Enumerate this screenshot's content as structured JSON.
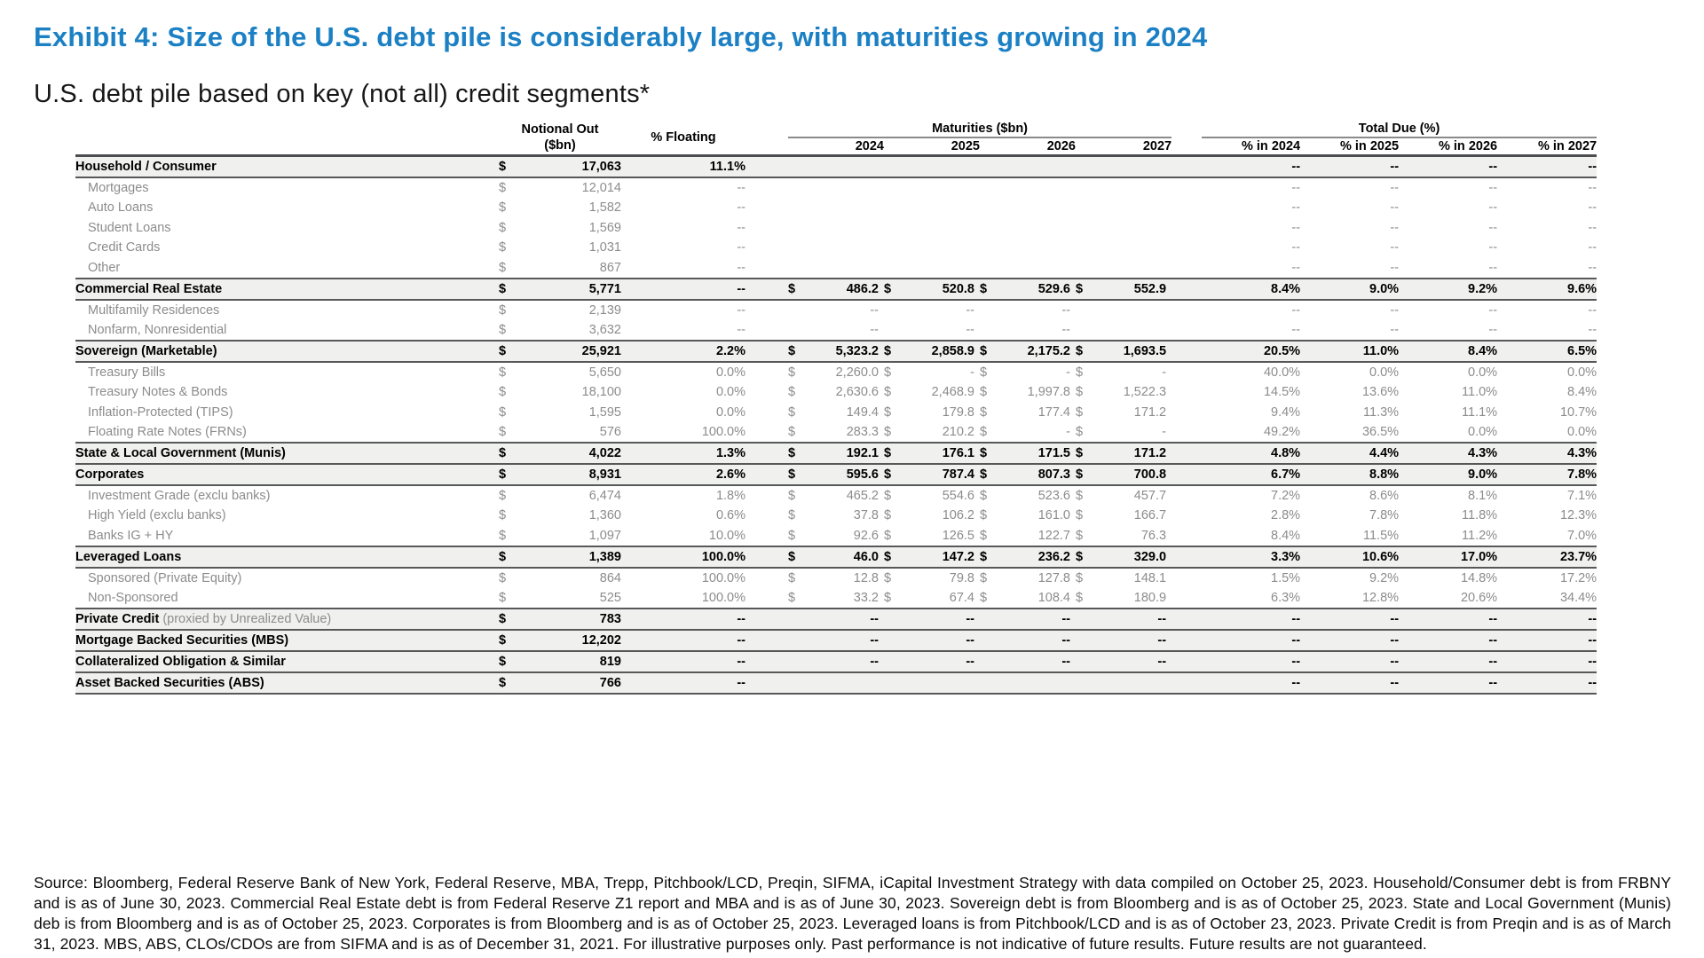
{
  "exhibit": {
    "title": "Exhibit 4: Size of the U.S. debt pile is considerably large, with maturities growing in 2024",
    "subtitle": "U.S. debt pile based on key (not all) credit segments*"
  },
  "colors": {
    "title_blue": "#1B80C4",
    "row_stripe": "#F0F0EE",
    "muted_text": "#8C8C8C",
    "rule_dark": "#4C4D4F",
    "rule_gray": "#8A8A8A"
  },
  "table": {
    "headers": {
      "notional_line1": "Notional Out",
      "notional_line2": "($bn)",
      "floating": "% Floating",
      "maturities_group": "Maturities ($bn)",
      "total_due_group": "Total Due (%)",
      "years": [
        "2024",
        "2025",
        "2026",
        "2027"
      ],
      "pct_years": [
        "% in 2024",
        "% in 2025",
        "% in 2026",
        "% in 2027"
      ]
    },
    "rows": [
      {
        "type": "main",
        "label": "Household / Consumer",
        "note": "",
        "cur": "$",
        "notional": "17,063",
        "floating": "11.1%",
        "m_cur": [
          "",
          "",
          "",
          ""
        ],
        "m_val": [
          "",
          "",
          "",
          ""
        ],
        "pct": [
          "--",
          "--",
          "--",
          "--"
        ]
      },
      {
        "type": "sub",
        "label": "Mortgages",
        "note": "",
        "cur": "$",
        "notional": "12,014",
        "floating": "--",
        "m_cur": [
          "",
          "",
          "",
          ""
        ],
        "m_val": [
          "",
          "",
          "",
          ""
        ],
        "pct": [
          "--",
          "--",
          "--",
          "--"
        ]
      },
      {
        "type": "sub",
        "label": "Auto Loans",
        "note": "",
        "cur": "$",
        "notional": "1,582",
        "floating": "--",
        "m_cur": [
          "",
          "",
          "",
          ""
        ],
        "m_val": [
          "",
          "",
          "",
          ""
        ],
        "pct": [
          "--",
          "--",
          "--",
          "--"
        ]
      },
      {
        "type": "sub",
        "label": "Student Loans",
        "note": "",
        "cur": "$",
        "notional": "1,569",
        "floating": "--",
        "m_cur": [
          "",
          "",
          "",
          ""
        ],
        "m_val": [
          "",
          "",
          "",
          ""
        ],
        "pct": [
          "--",
          "--",
          "--",
          "--"
        ]
      },
      {
        "type": "sub",
        "label": "Credit Cards",
        "note": "",
        "cur": "$",
        "notional": "1,031",
        "floating": "--",
        "m_cur": [
          "",
          "",
          "",
          ""
        ],
        "m_val": [
          "",
          "",
          "",
          ""
        ],
        "pct": [
          "--",
          "--",
          "--",
          "--"
        ]
      },
      {
        "type": "sub",
        "label": "Other",
        "note": "",
        "cur": "$",
        "notional": "867",
        "floating": "--",
        "m_cur": [
          "",
          "",
          "",
          ""
        ],
        "m_val": [
          "",
          "",
          "",
          ""
        ],
        "pct": [
          "--",
          "--",
          "--",
          "--"
        ]
      },
      {
        "type": "main",
        "label": "Commercial Real Estate",
        "note": "",
        "cur": "$",
        "notional": "5,771",
        "floating": "--",
        "m_cur": [
          "$",
          "$",
          "$",
          "$"
        ],
        "m_val": [
          "486.2",
          "520.8",
          "529.6",
          "552.9"
        ],
        "pct": [
          "8.4%",
          "9.0%",
          "9.2%",
          "9.6%"
        ]
      },
      {
        "type": "sub",
        "label": "Multifamily Residences",
        "note": "",
        "cur": "$",
        "notional": "2,139",
        "floating": "--",
        "m_cur": [
          "",
          "",
          "",
          ""
        ],
        "m_val": [
          "--",
          "--",
          "--",
          ""
        ],
        "pct": [
          "--",
          "--",
          "--",
          "--"
        ]
      },
      {
        "type": "sub",
        "label": "Nonfarm, Nonresidential",
        "note": "",
        "cur": "$",
        "notional": "3,632",
        "floating": "--",
        "m_cur": [
          "",
          "",
          "",
          ""
        ],
        "m_val": [
          "--",
          "--",
          "--",
          ""
        ],
        "pct": [
          "--",
          "--",
          "--",
          "--"
        ]
      },
      {
        "type": "main",
        "label": "Sovereign (Marketable)",
        "note": "",
        "cur": "$",
        "notional": "25,921",
        "floating": "2.2%",
        "m_cur": [
          "$",
          "$",
          "$",
          "$"
        ],
        "m_val": [
          "5,323.2",
          "2,858.9",
          "2,175.2",
          "1,693.5"
        ],
        "pct": [
          "20.5%",
          "11.0%",
          "8.4%",
          "6.5%"
        ]
      },
      {
        "type": "sub",
        "label": "Treasury Bills",
        "note": "",
        "cur": "$",
        "notional": "5,650",
        "floating": "0.0%",
        "m_cur": [
          "$",
          "$",
          "$",
          "$"
        ],
        "m_val": [
          "2,260.0",
          "-",
          "-",
          "-"
        ],
        "pct": [
          "40.0%",
          "0.0%",
          "0.0%",
          "0.0%"
        ]
      },
      {
        "type": "sub",
        "label": "Treasury Notes & Bonds",
        "note": "",
        "cur": "$",
        "notional": "18,100",
        "floating": "0.0%",
        "m_cur": [
          "$",
          "$",
          "$",
          "$"
        ],
        "m_val": [
          "2,630.6",
          "2,468.9",
          "1,997.8",
          "1,522.3"
        ],
        "pct": [
          "14.5%",
          "13.6%",
          "11.0%",
          "8.4%"
        ]
      },
      {
        "type": "sub",
        "label": "Inflation-Protected (TIPS)",
        "note": "",
        "cur": "$",
        "notional": "1,595",
        "floating": "0.0%",
        "m_cur": [
          "$",
          "$",
          "$",
          "$"
        ],
        "m_val": [
          "149.4",
          "179.8",
          "177.4",
          "171.2"
        ],
        "pct": [
          "9.4%",
          "11.3%",
          "11.1%",
          "10.7%"
        ]
      },
      {
        "type": "sub",
        "label": "Floating Rate Notes (FRNs)",
        "note": "",
        "cur": "$",
        "notional": "576",
        "floating": "100.0%",
        "m_cur": [
          "$",
          "$",
          "$",
          "$"
        ],
        "m_val": [
          "283.3",
          "210.2",
          "-",
          "-"
        ],
        "pct": [
          "49.2%",
          "36.5%",
          "0.0%",
          "0.0%"
        ]
      },
      {
        "type": "main",
        "label": "State & Local Government (Munis)",
        "note": "",
        "cur": "$",
        "notional": "4,022",
        "floating": "1.3%",
        "m_cur": [
          "$",
          "$",
          "$",
          "$"
        ],
        "m_val": [
          "192.1",
          "176.1",
          "171.5",
          "171.2"
        ],
        "pct": [
          "4.8%",
          "4.4%",
          "4.3%",
          "4.3%"
        ]
      },
      {
        "type": "main",
        "label": "Corporates",
        "note": "",
        "cur": "$",
        "notional": "8,931",
        "floating": "2.6%",
        "m_cur": [
          "$",
          "$",
          "$",
          "$"
        ],
        "m_val": [
          "595.6",
          "787.4",
          "807.3",
          "700.8"
        ],
        "pct": [
          "6.7%",
          "8.8%",
          "9.0%",
          "7.8%"
        ]
      },
      {
        "type": "sub",
        "label": "Investment Grade (exclu banks)",
        "note": "",
        "cur": "$",
        "notional": "6,474",
        "floating": "1.8%",
        "m_cur": [
          "$",
          "$",
          "$",
          "$"
        ],
        "m_val": [
          "465.2",
          "554.6",
          "523.6",
          "457.7"
        ],
        "pct": [
          "7.2%",
          "8.6%",
          "8.1%",
          "7.1%"
        ]
      },
      {
        "type": "sub",
        "label": "High Yield (exclu banks)",
        "note": "",
        "cur": "$",
        "notional": "1,360",
        "floating": "0.6%",
        "m_cur": [
          "$",
          "$",
          "$",
          "$"
        ],
        "m_val": [
          "37.8",
          "106.2",
          "161.0",
          "166.7"
        ],
        "pct": [
          "2.8%",
          "7.8%",
          "11.8%",
          "12.3%"
        ]
      },
      {
        "type": "sub",
        "label": "Banks IG + HY",
        "note": "",
        "cur": "$",
        "notional": "1,097",
        "floating": "10.0%",
        "m_cur": [
          "$",
          "$",
          "$",
          "$"
        ],
        "m_val": [
          "92.6",
          "126.5",
          "122.7",
          "76.3"
        ],
        "pct": [
          "8.4%",
          "11.5%",
          "11.2%",
          "7.0%"
        ]
      },
      {
        "type": "main",
        "label": "Leveraged Loans",
        "note": "",
        "cur": "$",
        "notional": "1,389",
        "floating": "100.0%",
        "m_cur": [
          "$",
          "$",
          "$",
          "$"
        ],
        "m_val": [
          "46.0",
          "147.2",
          "236.2",
          "329.0"
        ],
        "pct": [
          "3.3%",
          "10.6%",
          "17.0%",
          "23.7%"
        ]
      },
      {
        "type": "sub",
        "label": "Sponsored (Private Equity)",
        "note": "",
        "cur": "$",
        "notional": "864",
        "floating": "100.0%",
        "m_cur": [
          "$",
          "$",
          "$",
          "$"
        ],
        "m_val": [
          "12.8",
          "79.8",
          "127.8",
          "148.1"
        ],
        "pct": [
          "1.5%",
          "9.2%",
          "14.8%",
          "17.2%"
        ]
      },
      {
        "type": "sub",
        "label": "Non-Sponsored",
        "note": "",
        "cur": "$",
        "notional": "525",
        "floating": "100.0%",
        "m_cur": [
          "$",
          "$",
          "$",
          "$"
        ],
        "m_val": [
          "33.2",
          "67.4",
          "108.4",
          "180.9"
        ],
        "pct": [
          "6.3%",
          "12.8%",
          "20.6%",
          "34.4%"
        ]
      },
      {
        "type": "main",
        "label": "Private Credit",
        "note": "(proxied by Unrealized Value)",
        "cur": "$",
        "notional": "783",
        "floating": "--",
        "m_cur": [
          "",
          "",
          "",
          ""
        ],
        "m_val": [
          "--",
          "--",
          "--",
          "--"
        ],
        "pct": [
          "--",
          "--",
          "--",
          "--"
        ]
      },
      {
        "type": "main",
        "label": "Mortgage Backed Securities (MBS)",
        "note": "",
        "cur": "$",
        "notional": "12,202",
        "floating": "--",
        "m_cur": [
          "",
          "",
          "",
          ""
        ],
        "m_val": [
          "--",
          "--",
          "--",
          "--"
        ],
        "pct": [
          "--",
          "--",
          "--",
          "--"
        ]
      },
      {
        "type": "main",
        "label": "Collateralized Obligation & Similar",
        "note": "",
        "cur": "$",
        "notional": "819",
        "floating": "--",
        "m_cur": [
          "",
          "",
          "",
          ""
        ],
        "m_val": [
          "--",
          "--",
          "--",
          "--"
        ],
        "pct": [
          "--",
          "--",
          "--",
          "--"
        ]
      },
      {
        "type": "main",
        "label": "Asset Backed Securities (ABS)",
        "note": "",
        "cur": "$",
        "notional": "766",
        "floating": "--",
        "m_cur": [
          "",
          "",
          "",
          ""
        ],
        "m_val": [
          "",
          "",
          "",
          ""
        ],
        "pct": [
          "--",
          "--",
          "--",
          "--"
        ]
      }
    ]
  },
  "source": "Source: Bloomberg, Federal Reserve Bank of New York, Federal Reserve, MBA, Trepp, Pitchbook/LCD, Preqin, SIFMA, iCapital Investment Strategy with data compiled on October 25, 2023. Household/Consumer debt is from FRBNY and is as of June 30, 2023. Commercial Real Estate debt is from Federal Reserve Z1 report and MBA and is as of June 30, 2023. Sovereign debt is from Bloomberg and is as of October 25, 2023. State and Local Government (Munis) deb is from Bloomberg and is as of October 25, 2023. Corporates is from Bloomberg and is as of October 25, 2023. Leveraged loans is from Pitchbook/LCD and is as of October 23, 2023. Private Credit is from Preqin and is as of March 31, 2023. MBS, ABS, CLOs/CDOs are from SIFMA and is as of December 31, 2021. For illustrative purposes only. Past performance is not indicative of future results. Future results are not guaranteed."
}
